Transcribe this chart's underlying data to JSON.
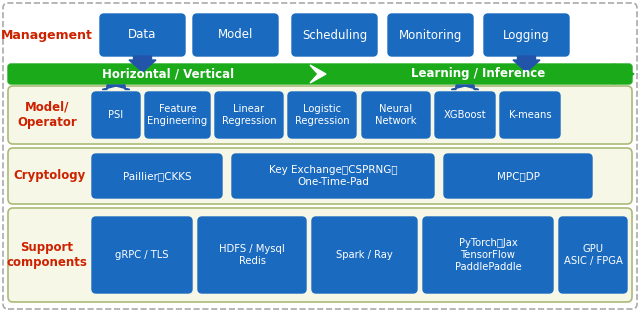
{
  "bg_color": "#ffffff",
  "section_label_color": "#cc2200",
  "blue_box_color": "#1a6abf",
  "blue_box_text_color": "#ffffff",
  "green_bar_color": "#1aaa1a",
  "green_bar_text_color": "#ffffff",
  "section_bg": "#f7f7e8",
  "section_border": "#aabb77",
  "arrow_color": "#2255aa",
  "management_label": "Management",
  "management_boxes": [
    "Data",
    "Model",
    "Scheduling",
    "Monitoring",
    "Logging"
  ],
  "green_bar_left": "Horizontal / Vertical",
  "green_bar_right": "Learning / Inference",
  "model_label": "Model/\nOperator",
  "model_boxes": [
    "PSI",
    "Feature\nEngineering",
    "Linear\nRegression",
    "Logistic\nRegression",
    "Neural\nNetwork",
    "XGBoost",
    "K-means"
  ],
  "cryptology_label": "Cryptology",
  "cryptology_boxes_text": [
    "Paillier、CKKS",
    "Key Exchange、CSPRNG、\nOne-Time-Pad",
    "MPC、DP"
  ],
  "support_label": "Support\ncomponents",
  "support_boxes_text": [
    "gRPC / TLS",
    "HDFS / Mysql\nRedis",
    "Spark / Ray",
    "PyTorch、Jax\nTensorFlow\nPaddlePaddle",
    "GPU\nASIC / FPGA"
  ]
}
